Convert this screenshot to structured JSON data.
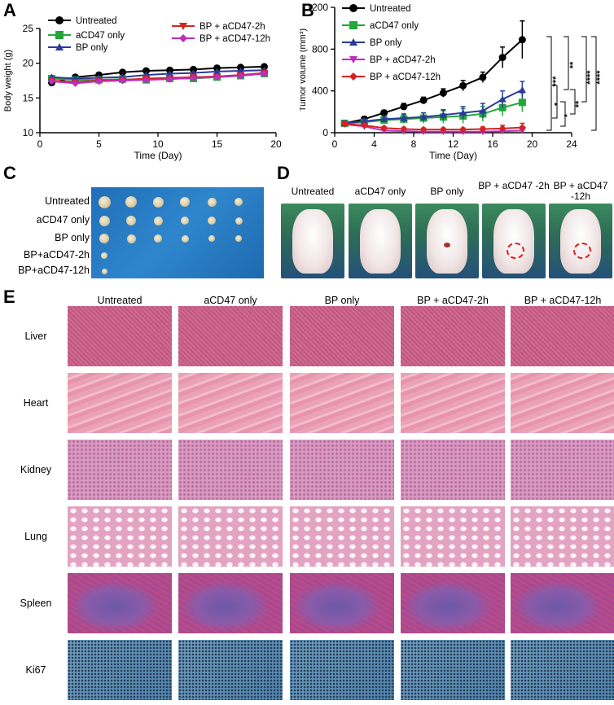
{
  "panels": {
    "A": "A",
    "B": "B",
    "C": "C",
    "D": "D",
    "E": "E"
  },
  "chart_data": [
    {
      "panel": "A",
      "type": "line",
      "xlabel": "Time (Day)",
      "ylabel": "Body weight (g)",
      "xlim": [
        0,
        20
      ],
      "ylim": [
        10,
        25
      ],
      "xticks": [
        "0",
        "5",
        "10",
        "15",
        "20"
      ],
      "yticks": [
        "10",
        "15",
        "20",
        "25"
      ],
      "legend": "top-left",
      "series": [
        {
          "name": "Untreated",
          "color": "#000000",
          "marker": "circle",
          "x": [
            1,
            3,
            5,
            7,
            9,
            11,
            13,
            15,
            17,
            19
          ],
          "y": [
            17.2,
            18.0,
            18.3,
            18.7,
            18.9,
            19.0,
            19.1,
            19.3,
            19.4,
            19.5
          ]
        },
        {
          "name": "aCD47 only",
          "color": "#22a83a",
          "marker": "square",
          "x": [
            1,
            3,
            5,
            7,
            9,
            11,
            13,
            15,
            17,
            19
          ],
          "y": [
            17.8,
            17.6,
            17.6,
            17.7,
            17.6,
            17.8,
            17.8,
            18.0,
            18.2,
            18.5
          ]
        },
        {
          "name": "BP only",
          "color": "#2b3a9c",
          "marker": "triangle-up",
          "x": [
            1,
            3,
            5,
            7,
            9,
            11,
            13,
            15,
            17,
            19
          ],
          "y": [
            18.0,
            17.8,
            17.9,
            18.0,
            18.3,
            18.5,
            18.6,
            18.8,
            18.9,
            19.0
          ]
        },
        {
          "name": "BP + aCD47-2h",
          "color": "#d42323",
          "marker": "triangle-down",
          "x": [
            1,
            3,
            5,
            7,
            9,
            11,
            13,
            15,
            17,
            19
          ],
          "y": [
            17.5,
            17.3,
            17.5,
            17.6,
            17.8,
            17.9,
            18.0,
            18.1,
            18.3,
            18.6
          ]
        },
        {
          "name": "BP + aCD47-12h",
          "color": "#c02bc0",
          "marker": "diamond",
          "x": [
            1,
            3,
            5,
            7,
            9,
            11,
            13,
            15,
            17,
            19
          ],
          "y": [
            17.4,
            17.1,
            17.4,
            17.5,
            17.6,
            17.7,
            17.9,
            18.0,
            18.2,
            18.5
          ]
        }
      ]
    },
    {
      "panel": "B",
      "type": "line",
      "xlabel": "Time (Day)",
      "ylabel": "Tumor volume (mm³)",
      "xlim": [
        0,
        24
      ],
      "ylim": [
        0,
        1200
      ],
      "xticks": [
        "0",
        "4",
        "8",
        "12",
        "16",
        "20",
        "24"
      ],
      "yticks": [
        "0",
        "400",
        "800",
        "1200"
      ],
      "legend": "top-left",
      "significance": [
        "***",
        "**",
        "****",
        "****",
        "*",
        "**",
        "*"
      ],
      "series": [
        {
          "name": "Untreated",
          "color": "#000000",
          "marker": "circle",
          "x": [
            1,
            3,
            5,
            7,
            9,
            11,
            13,
            15,
            17,
            19
          ],
          "y": [
            90,
            130,
            190,
            250,
            310,
            380,
            450,
            530,
            720,
            890
          ],
          "err": [
            20,
            25,
            25,
            30,
            30,
            40,
            50,
            50,
            100,
            180
          ]
        },
        {
          "name": "aCD47 only",
          "color": "#22a83a",
          "marker": "square",
          "x": [
            1,
            3,
            5,
            7,
            9,
            11,
            13,
            15,
            17,
            19
          ],
          "y": [
            90,
            100,
            120,
            130,
            140,
            150,
            160,
            180,
            240,
            290
          ],
          "err": [
            20,
            20,
            30,
            40,
            50,
            60,
            70,
            70,
            80,
            90
          ]
        },
        {
          "name": "BP only",
          "color": "#2b3a9c",
          "marker": "triangle-up",
          "x": [
            1,
            3,
            5,
            7,
            9,
            11,
            13,
            15,
            17,
            19
          ],
          "y": [
            90,
            110,
            130,
            140,
            150,
            170,
            190,
            210,
            320,
            410
          ],
          "err": [
            20,
            20,
            30,
            40,
            40,
            50,
            60,
            70,
            80,
            80
          ]
        },
        {
          "name": "BP + aCD47-2h",
          "color": "#c02bc0",
          "marker": "triangle-down",
          "x": [
            1,
            3,
            5,
            7,
            9,
            11,
            13,
            15,
            17,
            19
          ],
          "y": [
            80,
            60,
            20,
            15,
            10,
            10,
            10,
            10,
            15,
            20
          ],
          "err": [
            15,
            15,
            10,
            10,
            10,
            10,
            10,
            10,
            10,
            10
          ]
        },
        {
          "name": "BP + aCD47-12h",
          "color": "#d42323",
          "marker": "diamond",
          "x": [
            1,
            3,
            5,
            7,
            9,
            11,
            13,
            15,
            17,
            19
          ],
          "y": [
            85,
            70,
            45,
            35,
            30,
            30,
            30,
            35,
            40,
            50
          ],
          "err": [
            15,
            15,
            15,
            15,
            15,
            15,
            15,
            20,
            30,
            40
          ]
        }
      ]
    }
  ],
  "panel_c": {
    "rows": [
      {
        "label": "Untreated",
        "count": 6
      },
      {
        "label": "aCD47 only",
        "count": 6
      },
      {
        "label": "BP only",
        "count": 6
      },
      {
        "label": "BP+aCD47-2h",
        "count": 1
      },
      {
        "label": "BP+aCD47-12h",
        "count": 1
      }
    ]
  },
  "panel_d": {
    "labels": [
      "Untreated",
      "aCD47 only",
      "BP only",
      "BP + aCD47 -2h",
      "BP + aCD47 -12h"
    ]
  },
  "panel_e": {
    "columns": [
      "Untreated",
      "aCD47 only",
      "BP only",
      "BP + aCD47-2h",
      "BP + aCD47-12h"
    ],
    "rows": [
      "Liver",
      "Heart",
      "Kidney",
      "Lung",
      "Spleen",
      "Ki67"
    ]
  }
}
